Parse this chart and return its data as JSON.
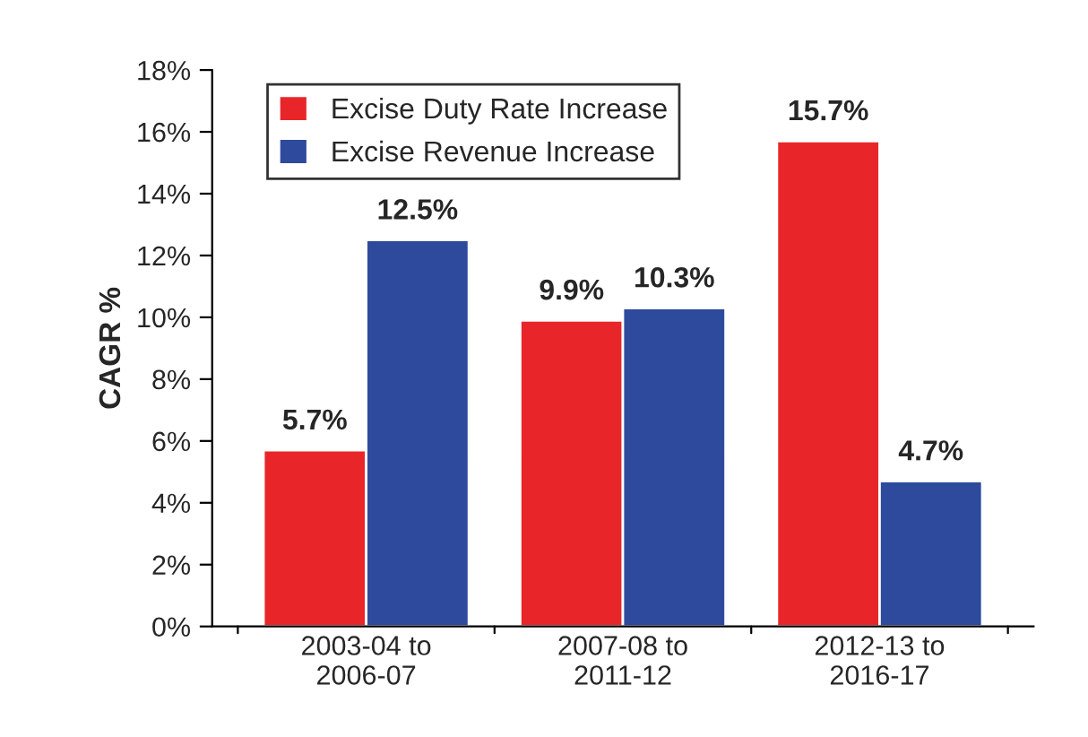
{
  "chart_data": {
    "type": "bar",
    "ylabel": "CAGR %",
    "categories": [
      "2003-04 to\n2006-07",
      "2007-08 to\n2011-12",
      "2012-13 to\n2016-17"
    ],
    "series": [
      {
        "name": "Excise Duty Rate Increase",
        "color": "#e8262a",
        "values": [
          5.7,
          9.9,
          15.7
        ],
        "value_labels": [
          "5.7%",
          "9.9%",
          "15.7%"
        ]
      },
      {
        "name": "Excise Revenue Increase",
        "color": "#2e4a9c",
        "values": [
          12.5,
          10.3,
          4.7
        ],
        "value_labels": [
          "12.5%",
          "10.3%",
          "4.7%"
        ]
      }
    ],
    "ylim": [
      0,
      18
    ],
    "yticks": [
      {
        "value": 0,
        "label": "0%"
      },
      {
        "value": 2,
        "label": "2%"
      },
      {
        "value": 4,
        "label": "4%"
      },
      {
        "value": 6,
        "label": "6%"
      },
      {
        "value": 8,
        "label": "8%"
      },
      {
        "value": 10,
        "label": "10%"
      },
      {
        "value": 12,
        "label": "12%"
      },
      {
        "value": 14,
        "label": "14%"
      },
      {
        "value": 16,
        "label": "16%"
      },
      {
        "value": 18,
        "label": "18%"
      }
    ],
    "grid": false,
    "legend": "top left"
  }
}
